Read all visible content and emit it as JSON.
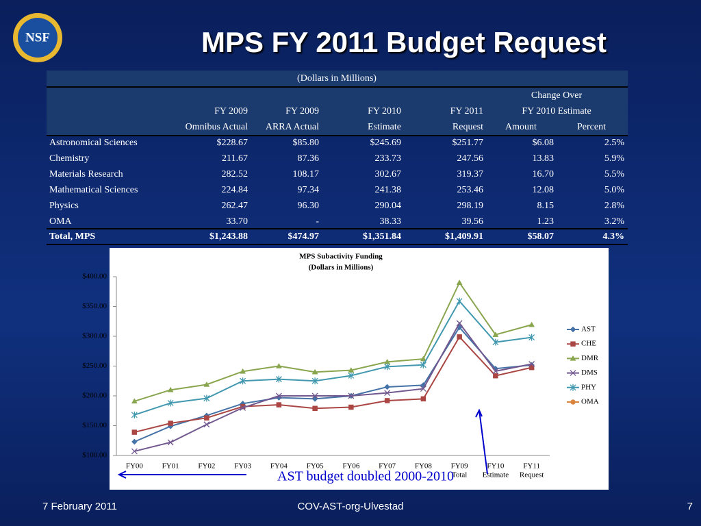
{
  "title": "MPS FY 2011 Budget Request",
  "table": {
    "caption": "(Dollars in Millions)",
    "header_top": "Change Over",
    "header_mid": [
      "FY 2009",
      "FY 2009",
      "FY 2010",
      "FY 2011",
      "FY 2010 Estimate"
    ],
    "header_bottom": [
      "Omnibus Actual",
      "ARRA Actual",
      "Estimate",
      "Request",
      "Amount",
      "Percent"
    ],
    "rows": [
      [
        "Astronomical Sciences",
        "$228.67",
        "$85.80",
        "$245.69",
        "$251.77",
        "$6.08",
        "2.5%"
      ],
      [
        "Chemistry",
        "211.67",
        "87.36",
        "233.73",
        "247.56",
        "13.83",
        "5.9%"
      ],
      [
        "Materials Research",
        "282.52",
        "108.17",
        "302.67",
        "319.37",
        "16.70",
        "5.5%"
      ],
      [
        "Mathematical Sciences",
        "224.84",
        "97.34",
        "241.38",
        "253.46",
        "12.08",
        "5.0%"
      ],
      [
        "Physics",
        "262.47",
        "96.30",
        "290.04",
        "298.19",
        "8.15",
        "2.8%"
      ],
      [
        "OMA",
        "33.70",
        "-",
        "38.33",
        "39.56",
        "1.23",
        "3.2%"
      ]
    ],
    "total": [
      "Total, MPS",
      "$1,243.88",
      "$474.97",
      "$1,351.84",
      "$1,409.91",
      "$58.07",
      "4.3%"
    ]
  },
  "chart_data": {
    "type": "line",
    "title": "MPS Subactivity Funding",
    "subtitle": "(Dollars in Millions)",
    "categories": [
      "FY00",
      "FY01",
      "FY02",
      "FY03",
      "FY04",
      "FY05",
      "FY06",
      "FY07",
      "FY08",
      "FY09",
      "FY10",
      "FY11"
    ],
    "category_sublabels": [
      null,
      null,
      null,
      null,
      null,
      null,
      null,
      null,
      null,
      "Total",
      "Estimate",
      "Request"
    ],
    "ylim": [
      100,
      400
    ],
    "yticks": [
      {
        "value": 100,
        "label": "$100.00"
      },
      {
        "value": 150,
        "label": "$150.00"
      },
      {
        "value": 200,
        "label": "$200.00"
      },
      {
        "value": 250,
        "label": "$250.00"
      },
      {
        "value": 300,
        "label": "$300.00"
      },
      {
        "value": 350,
        "label": "$350.00"
      },
      {
        "value": 400,
        "label": "$400.00"
      }
    ],
    "legend": "right",
    "series": [
      {
        "name": "AST",
        "color": "#4572a7",
        "marker": "diamond",
        "values": [
          123,
          149,
          167,
          187,
          197,
          195,
          200,
          215,
          218,
          315,
          245.69,
          251.77
        ]
      },
      {
        "name": "CHE",
        "color": "#aa4643",
        "marker": "square",
        "values": [
          139,
          154,
          163,
          182,
          185,
          179,
          181,
          192,
          195,
          299,
          233.73,
          247.56
        ]
      },
      {
        "name": "DMR",
        "color": "#89a54e",
        "marker": "triangle",
        "values": [
          191,
          210,
          219,
          241,
          250,
          240,
          243,
          257,
          262,
          390,
          302.67,
          319.37
        ]
      },
      {
        "name": "DMS",
        "color": "#71588f",
        "marker": "x",
        "values": [
          107,
          122,
          152,
          180,
          200,
          200,
          200,
          205,
          212,
          322,
          241.38,
          253.46
        ]
      },
      {
        "name": "PHY",
        "color": "#4198af",
        "marker": "star",
        "values": [
          168,
          188,
          196,
          225,
          228,
          225,
          234,
          249,
          252,
          359,
          290.04,
          298.19
        ]
      },
      {
        "name": "OMA",
        "color": "#db843d",
        "marker": "circle",
        "values": [
          null,
          null,
          null,
          null,
          null,
          null,
          null,
          null,
          null,
          null,
          null,
          null
        ]
      }
    ],
    "annotation": "AST budget doubled 2000-2010"
  },
  "footer": {
    "date": "7 February 2011",
    "center": "COV-AST-org-Ulvestad",
    "page": "7"
  }
}
